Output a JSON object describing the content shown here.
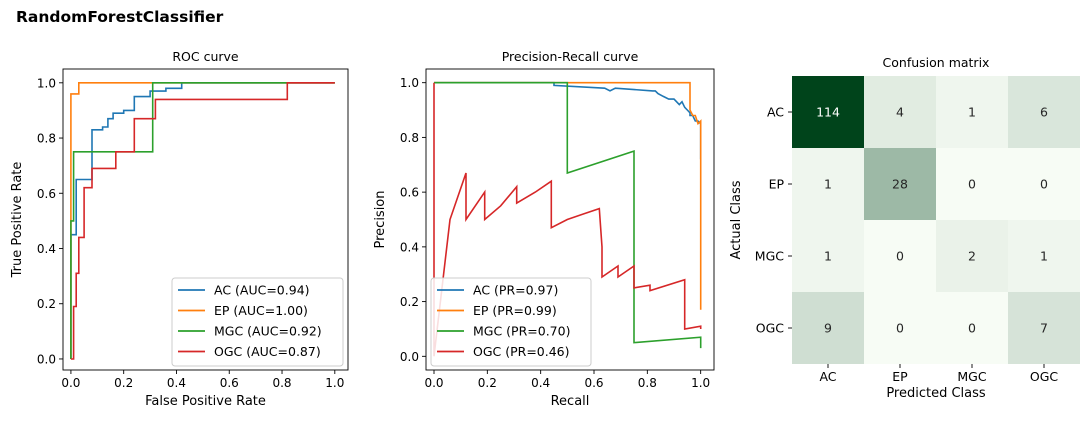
{
  "figure": {
    "title": "RandomForestClassifier"
  },
  "chart_data": [
    {
      "type": "line",
      "title": "ROC curve",
      "xlabel": "False Positive Rate",
      "ylabel": "True Positive Rate",
      "xlim": [
        -0.03,
        1.05
      ],
      "ylim": [
        -0.04,
        1.05
      ],
      "xticks": [
        0.0,
        0.2,
        0.4,
        0.6,
        0.8,
        1.0
      ],
      "yticks": [
        0.0,
        0.2,
        0.4,
        0.6,
        0.8,
        1.0
      ],
      "grid": false,
      "legend_position": "lower right",
      "series": [
        {
          "name": "AC (AUC=0.94)",
          "color": "#1f77b4",
          "points": [
            [
              0,
              0
            ],
            [
              0,
              0.45
            ],
            [
              0.02,
              0.45
            ],
            [
              0.02,
              0.65
            ],
            [
              0.08,
              0.65
            ],
            [
              0.08,
              0.83
            ],
            [
              0.12,
              0.83
            ],
            [
              0.12,
              0.84
            ],
            [
              0.14,
              0.84
            ],
            [
              0.14,
              0.87
            ],
            [
              0.16,
              0.87
            ],
            [
              0.16,
              0.89
            ],
            [
              0.2,
              0.89
            ],
            [
              0.2,
              0.9
            ],
            [
              0.24,
              0.9
            ],
            [
              0.24,
              0.95
            ],
            [
              0.3,
              0.95
            ],
            [
              0.3,
              0.97
            ],
            [
              0.36,
              0.97
            ],
            [
              0.36,
              0.98
            ],
            [
              0.42,
              0.98
            ],
            [
              0.42,
              1.0
            ],
            [
              1.0,
              1.0
            ]
          ]
        },
        {
          "name": "EP (AUC=1.00)",
          "color": "#ff7f0e",
          "points": [
            [
              0,
              0
            ],
            [
              0,
              0.96
            ],
            [
              0.03,
              0.96
            ],
            [
              0.03,
              1.0
            ],
            [
              1.0,
              1.0
            ]
          ]
        },
        {
          "name": "MGC (AUC=0.92)",
          "color": "#2ca02c",
          "points": [
            [
              0,
              0
            ],
            [
              0,
              0.5
            ],
            [
              0.01,
              0.5
            ],
            [
              0.01,
              0.75
            ],
            [
              0.31,
              0.75
            ],
            [
              0.31,
              1.0
            ],
            [
              1.0,
              1.0
            ]
          ]
        },
        {
          "name": "OGC (AUC=0.87)",
          "color": "#d62728",
          "points": [
            [
              0,
              0
            ],
            [
              0.01,
              0
            ],
            [
              0.01,
              0.19
            ],
            [
              0.02,
              0.19
            ],
            [
              0.02,
              0.31
            ],
            [
              0.03,
              0.31
            ],
            [
              0.03,
              0.44
            ],
            [
              0.05,
              0.44
            ],
            [
              0.05,
              0.62
            ],
            [
              0.08,
              0.62
            ],
            [
              0.08,
              0.69
            ],
            [
              0.17,
              0.69
            ],
            [
              0.17,
              0.75
            ],
            [
              0.24,
              0.75
            ],
            [
              0.24,
              0.87
            ],
            [
              0.32,
              0.87
            ],
            [
              0.32,
              0.94
            ],
            [
              0.82,
              0.94
            ],
            [
              0.82,
              1.0
            ],
            [
              1.0,
              1.0
            ]
          ]
        }
      ]
    },
    {
      "type": "line",
      "title": "Precision-Recall curve",
      "xlabel": "Recall",
      "ylabel": "Precision",
      "xlim": [
        -0.03,
        1.05
      ],
      "ylim": [
        -0.05,
        1.05
      ],
      "xticks": [
        0.0,
        0.2,
        0.4,
        0.6,
        0.8,
        1.0
      ],
      "yticks": [
        0.0,
        0.2,
        0.4,
        0.6,
        0.8,
        1.0
      ],
      "grid": false,
      "legend_position": "lower left",
      "series": [
        {
          "name": "AC (PR=0.97)",
          "color": "#1f77b4",
          "points": [
            [
              1.0,
              0.72
            ],
            [
              1.0,
              0.85
            ],
            [
              0.99,
              0.86
            ],
            [
              0.98,
              0.86
            ],
            [
              0.97,
              0.88
            ],
            [
              0.96,
              0.88
            ],
            [
              0.96,
              0.89
            ],
            [
              0.95,
              0.9
            ],
            [
              0.94,
              0.91
            ],
            [
              0.93,
              0.93
            ],
            [
              0.92,
              0.92
            ],
            [
              0.9,
              0.94
            ],
            [
              0.88,
              0.94
            ],
            [
              0.86,
              0.95
            ],
            [
              0.84,
              0.96
            ],
            [
              0.83,
              0.97
            ],
            [
              0.82,
              0.97
            ],
            [
              0.68,
              0.98
            ],
            [
              0.66,
              0.97
            ],
            [
              0.64,
              0.98
            ],
            [
              0.45,
              0.99
            ],
            [
              0.45,
              1.0
            ],
            [
              0.0,
              1.0
            ]
          ]
        },
        {
          "name": "EP (PR=0.99)",
          "color": "#ff7f0e",
          "points": [
            [
              1.0,
              0.17
            ],
            [
              1.0,
              0.86
            ],
            [
              0.99,
              0.85
            ],
            [
              0.98,
              0.88
            ],
            [
              0.97,
              0.88
            ],
            [
              0.96,
              0.9
            ],
            [
              0.96,
              1.0
            ],
            [
              0.0,
              1.0
            ]
          ]
        },
        {
          "name": "MGC (PR=0.70)",
          "color": "#2ca02c",
          "points": [
            [
              1.0,
              0.03
            ],
            [
              1.0,
              0.07
            ],
            [
              0.75,
              0.05
            ],
            [
              0.75,
              0.75
            ],
            [
              0.5,
              0.67
            ],
            [
              0.5,
              1.0
            ],
            [
              0.0,
              1.0
            ]
          ]
        },
        {
          "name": "OGC (PR=0.46)",
          "color": "#d62728",
          "points": [
            [
              1.0,
              0.1
            ],
            [
              1.0,
              0.11
            ],
            [
              0.94,
              0.1
            ],
            [
              0.94,
              0.28
            ],
            [
              0.81,
              0.24
            ],
            [
              0.81,
              0.26
            ],
            [
              0.75,
              0.25
            ],
            [
              0.75,
              0.33
            ],
            [
              0.69,
              0.29
            ],
            [
              0.69,
              0.33
            ],
            [
              0.63,
              0.29
            ],
            [
              0.63,
              0.39
            ],
            [
              0.63,
              0.4
            ],
            [
              0.62,
              0.54
            ],
            [
              0.56,
              0.52
            ],
            [
              0.5,
              0.5
            ],
            [
              0.44,
              0.47
            ],
            [
              0.44,
              0.64
            ],
            [
              0.38,
              0.6
            ],
            [
              0.31,
              0.56
            ],
            [
              0.31,
              0.62
            ],
            [
              0.25,
              0.55
            ],
            [
              0.19,
              0.5
            ],
            [
              0.19,
              0.6
            ],
            [
              0.12,
              0.5
            ],
            [
              0.12,
              0.67
            ],
            [
              0.06,
              0.5
            ],
            [
              0.0,
              0.0
            ],
            [
              0.0,
              1.0
            ]
          ]
        }
      ]
    },
    {
      "type": "heatmap",
      "title": "Confusion matrix",
      "xlabel": "Predicted Class",
      "ylabel": "Actual Class",
      "x_categories": [
        "AC",
        "EP",
        "MGC",
        "OGC"
      ],
      "y_categories": [
        "AC",
        "EP",
        "MGC",
        "OGC"
      ],
      "matrix": [
        [
          114,
          4,
          1,
          6
        ],
        [
          1,
          28,
          0,
          0
        ],
        [
          1,
          0,
          2,
          1
        ],
        [
          9,
          0,
          0,
          7
        ]
      ],
      "colormap": "Greens",
      "colorbar": false
    }
  ]
}
